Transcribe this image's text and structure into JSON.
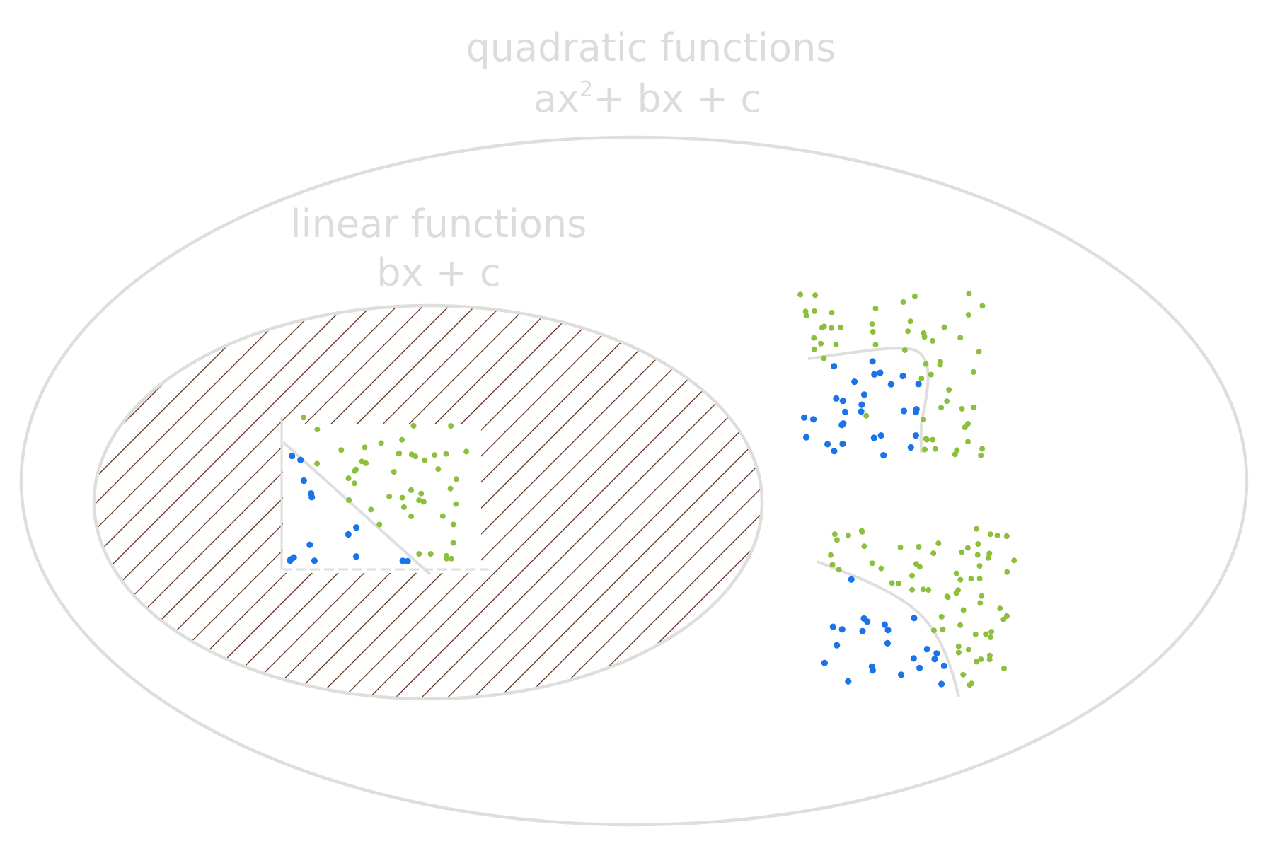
{
  "diagram": {
    "outer_set": {
      "title": "quadratic functions",
      "formula_a": "ax",
      "formula_exp": "2",
      "formula_rest": "+ bx + c"
    },
    "inner_set": {
      "title": "linear functions",
      "formula": "bx + c"
    },
    "colors": {
      "outline": "#dedede",
      "hatch": "#5b2d16",
      "point_class_a": "#1a73e8",
      "point_class_b": "#8bbf3c",
      "text": "#dcdcdc"
    },
    "examples": [
      {
        "name": "linear-boundary-example",
        "boundary": "straight line"
      },
      {
        "name": "quadratic-boundary-example-1",
        "boundary": "curve"
      },
      {
        "name": "quadratic-boundary-example-2",
        "boundary": "curve"
      }
    ]
  }
}
